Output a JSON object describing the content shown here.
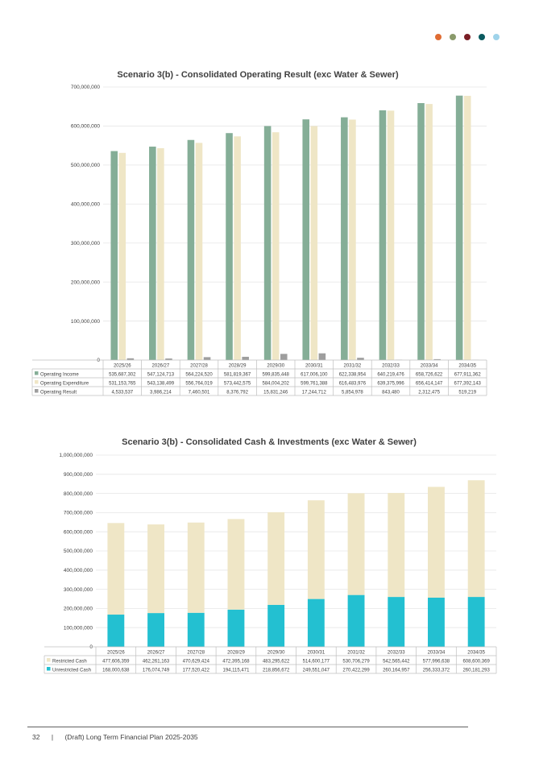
{
  "dots": [
    "#e06c33",
    "#8a9a6b",
    "#7a1e25",
    "#0a5a5f",
    "#9fd3ea"
  ],
  "charts": [
    {
      "chart_data": {
        "type": "bar",
        "title": "Scenario 3(b) - Consolidated Operating Result (exc Water & Sewer)",
        "categories": [
          "2025/26",
          "2026/27",
          "2027/28",
          "2028/29",
          "2029/30",
          "2030/31",
          "2031/32",
          "2032/33",
          "2033/34",
          "2034/35"
        ],
        "ylim": [
          0,
          700000000
        ],
        "yticks": [
          "0",
          "100,000,000",
          "200,000,000",
          "300,000,000",
          "400,000,000",
          "500,000,000",
          "600,000,000",
          "700,000,000"
        ],
        "grid": true,
        "series": [
          {
            "name": "Operating Income",
            "color": "#85ae97",
            "values": [
              535687302,
              547124713,
              564224520,
              581819367,
              599835448,
              617006100,
              622338954,
              640219476,
              658726622,
              677911362
            ],
            "labels": [
              "535,687,302",
              "547,124,713",
              "564,224,520",
              "581,819,367",
              "599,835,448",
              "617,006,100",
              "622,338,954",
              "640,219,476",
              "658,726,622",
              "677,911,362"
            ]
          },
          {
            "name": "Operating Expenditure",
            "color": "#efe6c6",
            "values": [
              531153765,
              543138499,
              556764019,
              573442575,
              584004202,
              599761388,
              616483976,
              639375996,
              656414147,
              677392143
            ],
            "labels": [
              "531,153,765",
              "543,138,499",
              "556,764,019",
              "573,442,575",
              "584,004,202",
              "599,761,388",
              "616,483,976",
              "639,375,996",
              "656,414,147",
              "677,392,143"
            ]
          },
          {
            "name": "Operating Result",
            "color": "#9e9e9e",
            "values": [
              4533537,
              3986214,
              7460501,
              8376792,
              15831246,
              17244712,
              5854978,
              843480,
              2312475,
              519219
            ],
            "labels": [
              "4,533,537",
              "3,986,214",
              "7,460,501",
              "8,376,792",
              "15,831,246",
              "17,244,712",
              "5,854,978",
              "843,480",
              "2,312,475",
              "519,219"
            ]
          }
        ]
      }
    },
    {
      "chart_data": {
        "type": "bar",
        "stacked": true,
        "title": "Scenario 3(b) - Consolidated Cash & Investments (exc Water & Sewer)",
        "categories": [
          "2025/26",
          "2026/27",
          "2027/28",
          "2028/29",
          "2029/30",
          "2030/31",
          "2031/32",
          "2032/33",
          "2033/34",
          "2034/35"
        ],
        "ylim": [
          0,
          1000000000
        ],
        "yticks": [
          "0",
          "100,000,000",
          "200,000,000",
          "300,000,000",
          "400,000,000",
          "500,000,000",
          "600,000,000",
          "700,000,000",
          "800,000,000",
          "900,000,000",
          "1,000,000,000"
        ],
        "grid": true,
        "series": [
          {
            "name": "Restricted Cash",
            "color": "#efe6c6",
            "values": [
              477606359,
              462261163,
              470629424,
              472395168,
              483295622,
              514600177,
              530706279,
              542565442,
              577996638,
              608600369
            ],
            "labels": [
              "477,606,359",
              "462,261,163",
              "470,629,424",
              "472,395,168",
              "483,295,622",
              "514,600,177",
              "530,706,279",
              "542,565,442",
              "577,996,638",
              "608,600,369"
            ]
          },
          {
            "name": "Unrestricted Cash",
            "color": "#23c0d1",
            "values": [
              168000638,
              176074749,
              177520422,
              194115471,
              218856672,
              249551047,
              270422299,
              260164957,
              256333372,
              260181293
            ],
            "labels": [
              "168,000,638",
              "176,074,749",
              "177,520,422",
              "194,115,471",
              "218,856,672",
              "249,551,047",
              "270,422,299",
              "260,164,957",
              "256,333,372",
              "260,181,293"
            ]
          }
        ]
      }
    }
  ],
  "footer": {
    "page": "32",
    "sep": "|",
    "title": "(Draft) Long Term Financial Plan 2025-2035"
  }
}
